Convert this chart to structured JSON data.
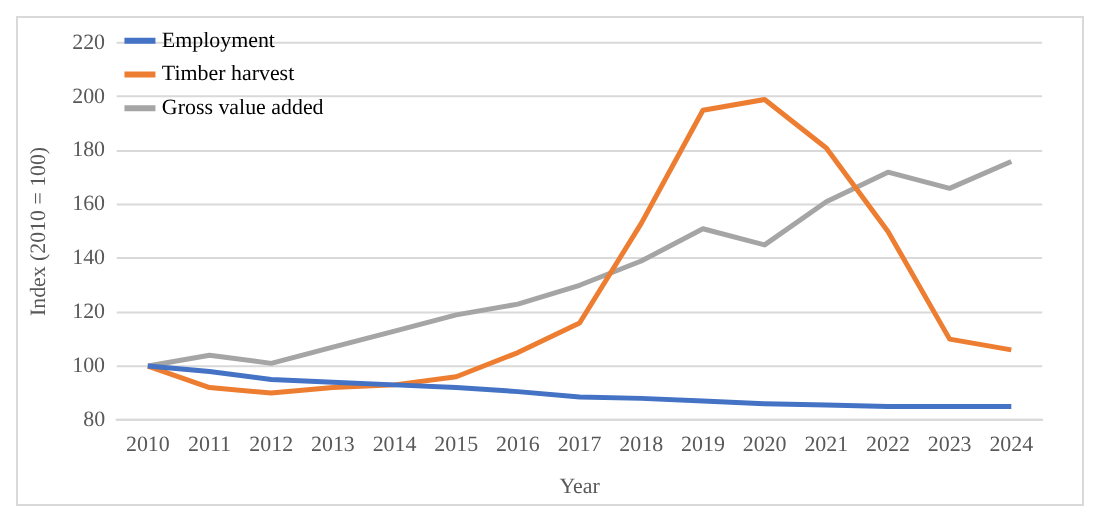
{
  "chart_data": {
    "type": "line",
    "xlabel": "Year",
    "ylabel": "Index (2010 = 100)",
    "categories": [
      "2010",
      "2011",
      "2012",
      "2013",
      "2014",
      "2015",
      "2016",
      "2017",
      "2018",
      "2019",
      "2020",
      "2021",
      "2022",
      "2023",
      "2024"
    ],
    "series": [
      {
        "name": "Employment",
        "color": "#4472c4",
        "values": [
          100,
          98,
          95,
          94,
          93,
          92,
          90.5,
          88.5,
          88,
          87,
          86,
          85.5,
          85,
          85,
          85
        ]
      },
      {
        "name": "Timber harvest",
        "color": "#ed7d31",
        "values": [
          100,
          92,
          90,
          92,
          93,
          96,
          105,
          116,
          153,
          195,
          199,
          181,
          150,
          110,
          106
        ]
      },
      {
        "name": "Gross value added",
        "color": "#a5a5a5",
        "values": [
          100,
          104,
          101,
          107,
          113,
          119,
          123,
          130,
          139,
          151,
          145,
          161,
          172,
          166,
          176
        ]
      }
    ],
    "ylim": [
      80,
      220
    ],
    "yticks": [
      80,
      100,
      120,
      140,
      160,
      180,
      200,
      220
    ],
    "grid": "y",
    "legend": "top left",
    "marker": "none",
    "line_style": "solid"
  }
}
